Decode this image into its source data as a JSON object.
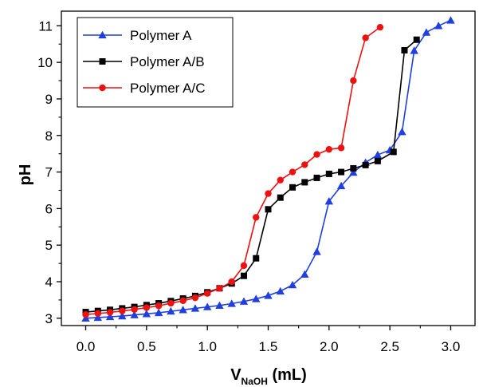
{
  "chart_data": {
    "type": "line",
    "title": "",
    "xlabel": {
      "main": "V",
      "subscript": "NaOH",
      "suffix": " (mL)"
    },
    "ylabel": "pH",
    "xlim": [
      -0.2,
      3.2
    ],
    "ylim": [
      2.8,
      11.4
    ],
    "xticks": [
      "0.0",
      "0.5",
      "1.0",
      "1.5",
      "2.0",
      "2.5",
      "3.0"
    ],
    "yticks": [
      "3",
      "4",
      "5",
      "6",
      "7",
      "8",
      "9",
      "10",
      "11"
    ],
    "grid": false,
    "legend_position": "top-left",
    "series": [
      {
        "name": "Polymer A",
        "color": "#1f3fe0",
        "marker": "triangle",
        "x": [
          0.0,
          0.1,
          0.2,
          0.3,
          0.4,
          0.5,
          0.6,
          0.7,
          0.8,
          0.9,
          1.0,
          1.1,
          1.2,
          1.3,
          1.4,
          1.5,
          1.6,
          1.7,
          1.8,
          1.9,
          2.0,
          2.1,
          2.2,
          2.3,
          2.4,
          2.5,
          2.6,
          2.7,
          2.8,
          2.9,
          3.0
        ],
        "y": [
          3.0,
          3.02,
          3.04,
          3.06,
          3.09,
          3.12,
          3.15,
          3.19,
          3.23,
          3.27,
          3.31,
          3.35,
          3.4,
          3.46,
          3.53,
          3.62,
          3.74,
          3.91,
          4.2,
          4.82,
          6.2,
          6.62,
          6.99,
          7.26,
          7.47,
          7.6,
          8.1,
          10.32,
          10.82,
          11.0,
          11.15
        ]
      },
      {
        "name": "Polymer A/B",
        "color": "#000000",
        "marker": "square",
        "x": [
          0.0,
          0.1,
          0.2,
          0.3,
          0.4,
          0.5,
          0.6,
          0.7,
          0.8,
          0.9,
          1.0,
          1.1,
          1.2,
          1.3,
          1.4,
          1.5,
          1.6,
          1.7,
          1.8,
          1.9,
          2.0,
          2.1,
          2.2,
          2.3,
          2.4,
          2.53,
          2.62,
          2.72
        ],
        "y": [
          3.17,
          3.2,
          3.23,
          3.27,
          3.31,
          3.36,
          3.41,
          3.47,
          3.54,
          3.61,
          3.71,
          3.82,
          3.95,
          4.16,
          4.64,
          5.98,
          6.3,
          6.58,
          6.72,
          6.84,
          6.95,
          7.0,
          7.1,
          7.19,
          7.3,
          7.55,
          10.33,
          10.62
        ]
      },
      {
        "name": "Polymer A/C",
        "color": "#ee1111",
        "marker": "circle",
        "x": [
          0.0,
          0.1,
          0.2,
          0.3,
          0.4,
          0.5,
          0.6,
          0.7,
          0.8,
          0.9,
          1.0,
          1.1,
          1.2,
          1.3,
          1.4,
          1.5,
          1.6,
          1.7,
          1.8,
          1.9,
          2.0,
          2.1,
          2.2,
          2.3,
          2.42
        ],
        "y": [
          3.1,
          3.13,
          3.16,
          3.2,
          3.24,
          3.29,
          3.34,
          3.41,
          3.48,
          3.56,
          3.68,
          3.82,
          4.0,
          4.44,
          5.76,
          6.41,
          6.78,
          7.0,
          7.2,
          7.48,
          7.62,
          7.66,
          9.5,
          10.67,
          10.96
        ]
      }
    ]
  }
}
